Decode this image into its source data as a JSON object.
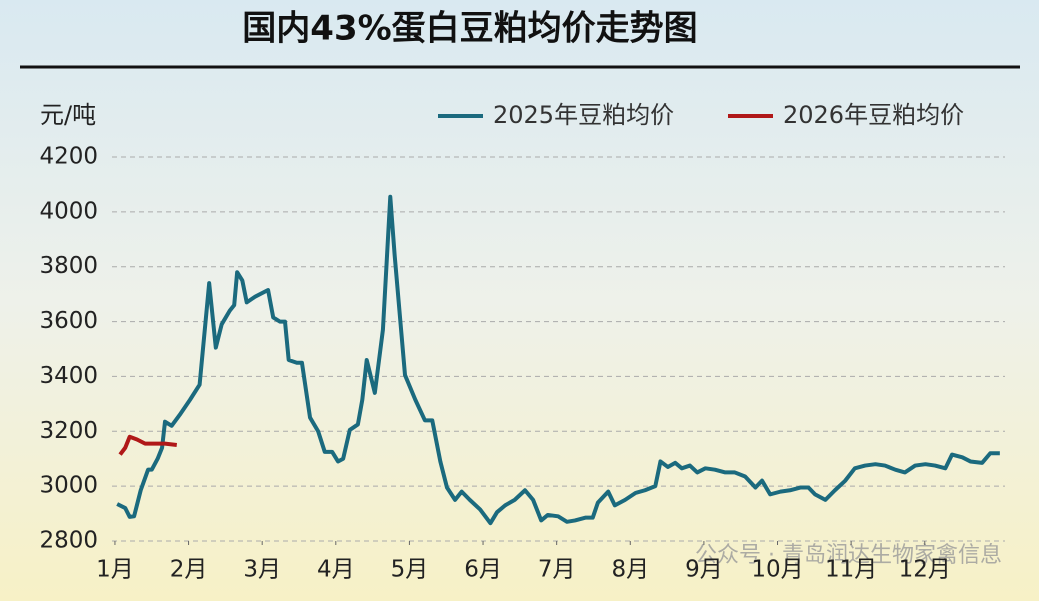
{
  "chart_data": {
    "type": "line",
    "title": "国内43%蛋白豆粕均价走势图",
    "y_label": "元/吨",
    "watermark": "公众号 · 青岛润达生物家禽信息",
    "ylim": [
      2800,
      4200
    ],
    "yticks": [
      2800,
      3000,
      3200,
      3400,
      3600,
      3800,
      4000,
      4200
    ],
    "xlim": [
      0.96,
      13.09
    ],
    "xticks": [
      {
        "value": 1,
        "label": "1月"
      },
      {
        "value": 2,
        "label": "2月"
      },
      {
        "value": 3,
        "label": "3月"
      },
      {
        "value": 4,
        "label": "4月"
      },
      {
        "value": 5,
        "label": "5月"
      },
      {
        "value": 6,
        "label": "6月"
      },
      {
        "value": 7,
        "label": "7月"
      },
      {
        "value": 8,
        "label": "8月"
      },
      {
        "value": 9,
        "label": "9月"
      },
      {
        "value": 10,
        "label": "10月"
      },
      {
        "value": 11,
        "label": "11月"
      },
      {
        "value": 12,
        "label": "12月"
      }
    ],
    "grid": true,
    "legend": "top-right",
    "series": [
      {
        "name": "2025年豆粕均价",
        "color": "#1b6a7e",
        "x": [
          1.03,
          1.14,
          1.2,
          1.26,
          1.35,
          1.45,
          1.5,
          1.58,
          1.64,
          1.68,
          1.77,
          1.88,
          2.02,
          2.15,
          2.28,
          2.37,
          2.45,
          2.56,
          2.62,
          2.66,
          2.73,
          2.79,
          2.9,
          3.08,
          3.15,
          3.24,
          3.31,
          3.36,
          3.47,
          3.54,
          3.65,
          3.76,
          3.85,
          3.95,
          4.03,
          4.1,
          4.19,
          4.3,
          4.36,
          4.42,
          4.53,
          4.64,
          4.74,
          4.8,
          4.94,
          5.08,
          5.21,
          5.31,
          5.42,
          5.51,
          5.62,
          5.71,
          5.82,
          5.96,
          6.1,
          6.19,
          6.3,
          6.43,
          6.57,
          6.68,
          6.79,
          6.88,
          7.02,
          7.14,
          7.25,
          7.39,
          7.49,
          7.56,
          7.7,
          7.79,
          7.93,
          8.07,
          8.2,
          8.34,
          8.41,
          8.51,
          8.61,
          8.7,
          8.81,
          8.91,
          9.02,
          9.15,
          9.29,
          9.42,
          9.56,
          9.7,
          9.79,
          9.9,
          10.04,
          10.17,
          10.31,
          10.42,
          10.51,
          10.65,
          10.78,
          10.92,
          11.05,
          11.19,
          11.33,
          11.46,
          11.6,
          11.73,
          11.87,
          12.01,
          12.14,
          12.28,
          12.37,
          12.51,
          12.62,
          12.78,
          12.89,
          13.02
        ],
        "values": [
          2935,
          2920,
          2888,
          2890,
          2985,
          3060,
          3060,
          3100,
          3140,
          3235,
          3220,
          3260,
          3315,
          3370,
          3740,
          3505,
          3590,
          3640,
          3660,
          3780,
          3750,
          3670,
          3690,
          3715,
          3615,
          3600,
          3600,
          3460,
          3450,
          3450,
          3250,
          3200,
          3125,
          3125,
          3090,
          3100,
          3205,
          3225,
          3315,
          3460,
          3340,
          3570,
          4055,
          3840,
          3405,
          3315,
          3240,
          3240,
          3090,
          2995,
          2950,
          2980,
          2950,
          2915,
          2865,
          2905,
          2930,
          2950,
          2985,
          2950,
          2875,
          2895,
          2890,
          2870,
          2875,
          2885,
          2885,
          2940,
          2980,
          2930,
          2950,
          2975,
          2985,
          3000,
          3090,
          3070,
          3085,
          3065,
          3075,
          3050,
          3065,
          3060,
          3050,
          3050,
          3035,
          2995,
          3020,
          2970,
          2980,
          2985,
          2995,
          2995,
          2970,
          2950,
          2985,
          3020,
          3065,
          3075,
          3080,
          3075,
          3060,
          3050,
          3075,
          3080,
          3075,
          3065,
          3115,
          3105,
          3090,
          3085,
          3120,
          3120
        ]
      },
      {
        "name": "2026年豆粕均价",
        "color": "#b01818",
        "x": [
          1.07,
          1.14,
          1.2,
          1.3,
          1.41,
          1.54,
          1.68,
          1.84
        ],
        "values": [
          3115,
          3140,
          3180,
          3170,
          3155,
          3155,
          3155,
          3150
        ]
      }
    ]
  }
}
